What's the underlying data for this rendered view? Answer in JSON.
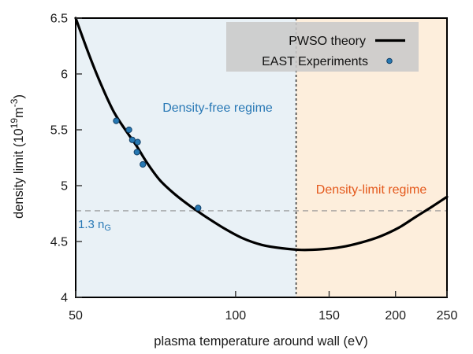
{
  "figure": {
    "background": "#ffffff"
  },
  "chart_data": {
    "type": "line+scatter",
    "title": "",
    "xlabel": "plasma temperature around wall (eV)",
    "ylabel": "density limit (10¹⁹m⁻³)",
    "ylabel_parts": [
      {
        "t": "density limit (10"
      },
      {
        "t": "19",
        "sup": true
      },
      {
        "t": "m"
      },
      {
        "t": "-3",
        "sup": true
      },
      {
        "t": ")"
      }
    ],
    "x_axis": {
      "scale": "log",
      "min": 50,
      "max": 250,
      "ticks": [
        50,
        100,
        150,
        200,
        250
      ],
      "grid": false
    },
    "y_axis": {
      "scale": "linear",
      "min": 4,
      "max": 6.5,
      "ticks": [
        4,
        4.5,
        5,
        5.5,
        6,
        6.5
      ],
      "grid": false
    },
    "series": [
      {
        "name": "PWSO theory",
        "type": "line",
        "color": "#000000",
        "line_width": 3.2,
        "points": [
          [
            50,
            6.5
          ],
          [
            53,
            6.17
          ],
          [
            56,
            5.89
          ],
          [
            59,
            5.66
          ],
          [
            62,
            5.5
          ],
          [
            65,
            5.36
          ],
          [
            68,
            5.21
          ],
          [
            72,
            5.05
          ],
          [
            77,
            4.92
          ],
          [
            82,
            4.82
          ],
          [
            88,
            4.72
          ],
          [
            95,
            4.62
          ],
          [
            103,
            4.53
          ],
          [
            112,
            4.47
          ],
          [
            122,
            4.44
          ],
          [
            133,
            4.425
          ],
          [
            145,
            4.43
          ],
          [
            158,
            4.45
          ],
          [
            172,
            4.49
          ],
          [
            187,
            4.545
          ],
          [
            203,
            4.625
          ],
          [
            219,
            4.725
          ],
          [
            234,
            4.81
          ],
          [
            250,
            4.9
          ]
        ]
      },
      {
        "name": "EAST Experiments",
        "type": "scatter",
        "color": "#2678b2",
        "edge_color": "#123f66",
        "radius": 3.6,
        "points": [
          [
            59.6,
            5.58
          ],
          [
            63,
            5.5
          ],
          [
            63.9,
            5.41
          ],
          [
            65.4,
            5.39
          ],
          [
            65.2,
            5.3
          ],
          [
            66.9,
            5.19
          ],
          [
            85,
            4.8
          ]
        ]
      }
    ],
    "regions": [
      {
        "label": "Density-free regime",
        "from": 50,
        "to": 130,
        "color": "#e9f1f6",
        "label_color": "#2878b5"
      },
      {
        "label": "Density-limit regime",
        "from": 130,
        "to": 250,
        "color": "#fdeedc",
        "label_color": "#e4581b"
      }
    ],
    "guides": {
      "horizontal": {
        "value": 4.775,
        "label": "1.3 n",
        "label_sub": "G",
        "color": "#8f8f8f",
        "label_color": "#2878b5"
      },
      "vertical": {
        "value": 130,
        "color": "#3c3c3c"
      }
    },
    "legend": {
      "position": "top-right",
      "background": "#c9c9c9",
      "entries": [
        {
          "label": "PWSO theory",
          "marker": "line"
        },
        {
          "label": "EAST Experiments",
          "marker": "dot"
        }
      ]
    }
  }
}
